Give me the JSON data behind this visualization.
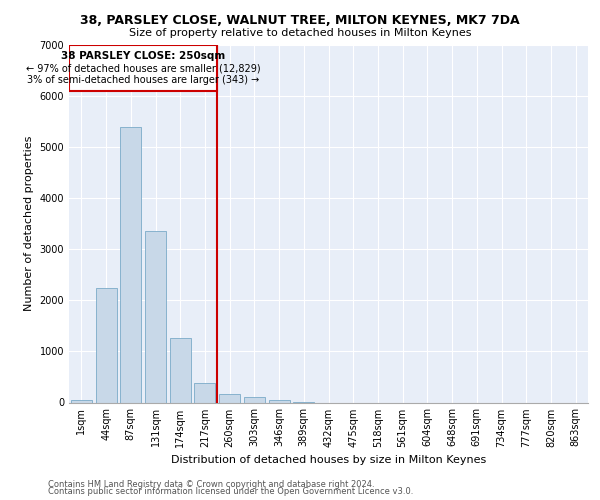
{
  "title_line1": "38, PARSLEY CLOSE, WALNUT TREE, MILTON KEYNES, MK7 7DA",
  "title_line2": "Size of property relative to detached houses in Milton Keynes",
  "xlabel": "Distribution of detached houses by size in Milton Keynes",
  "ylabel": "Number of detached properties",
  "footer_line1": "Contains HM Land Registry data © Crown copyright and database right 2024.",
  "footer_line2": "Contains public sector information licensed under the Open Government Licence v3.0.",
  "annotation_line1": "38 PARSLEY CLOSE: 250sqm",
  "annotation_line2": "← 97% of detached houses are smaller (12,829)",
  "annotation_line3": "3% of semi-detached houses are larger (343) →",
  "bar_color": "#c8d8e8",
  "bar_edge_color": "#7aaac8",
  "vline_color": "#cc0000",
  "box_color": "#cc0000",
  "categories": [
    "1sqm",
    "44sqm",
    "87sqm",
    "131sqm",
    "174sqm",
    "217sqm",
    "260sqm",
    "303sqm",
    "346sqm",
    "389sqm",
    "432sqm",
    "475sqm",
    "518sqm",
    "561sqm",
    "604sqm",
    "648sqm",
    "691sqm",
    "734sqm",
    "777sqm",
    "820sqm",
    "863sqm"
  ],
  "values": [
    55,
    2250,
    5400,
    3350,
    1270,
    390,
    165,
    100,
    55,
    5,
    0,
    0,
    0,
    0,
    0,
    0,
    0,
    0,
    0,
    0,
    0
  ],
  "ylim": [
    0,
    7000
  ],
  "yticks": [
    0,
    1000,
    2000,
    3000,
    4000,
    5000,
    6000,
    7000
  ],
  "plot_bg_color": "#e8eef8",
  "grid_color": "#ffffff",
  "title_fontsize": 9,
  "subtitle_fontsize": 8,
  "ylabel_fontsize": 8,
  "xlabel_fontsize": 8,
  "tick_fontsize": 7,
  "footer_fontsize": 6
}
